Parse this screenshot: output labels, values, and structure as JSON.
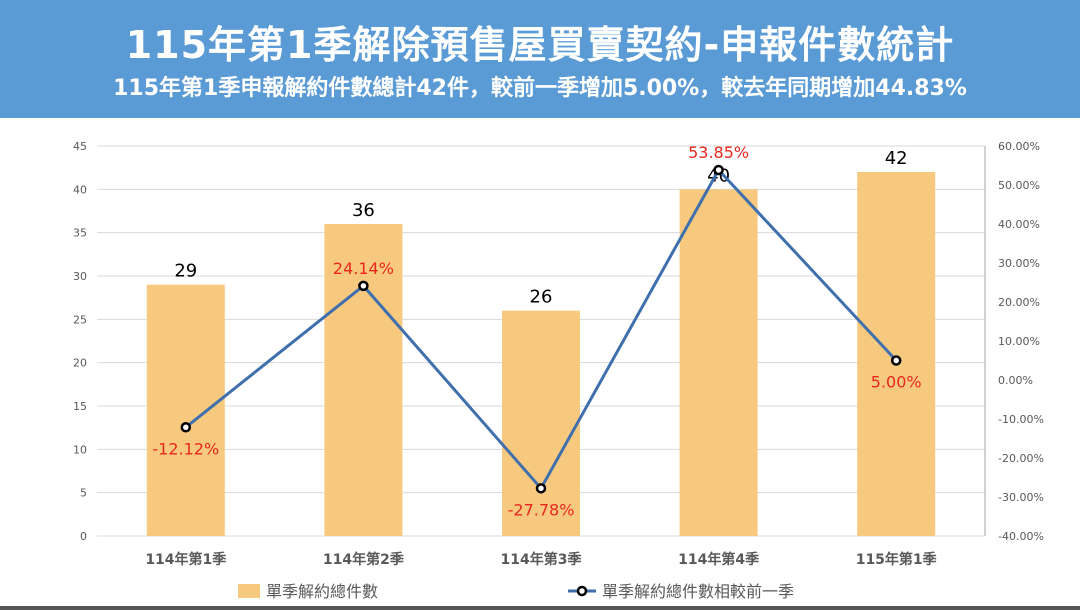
{
  "header": {
    "title": "115年第1季解除預售屋買賣契約-申報件數統計",
    "subtitle": "115年第1季申報解約件數總計42件，較前一季增加5.00%，較去年同期增加44.83%"
  },
  "chart_data": {
    "type": "bar",
    "categories": [
      "114年第1季",
      "114年第2季",
      "114年第3季",
      "114年第4季",
      "115年第1季"
    ],
    "series": [
      {
        "name": "單季解約總件數",
        "type": "bar",
        "axis": "left",
        "values": [
          29,
          36,
          26,
          40,
          42
        ],
        "labels": [
          "29",
          "36",
          "26",
          "40",
          "42"
        ],
        "color": "#f6c97f"
      },
      {
        "name": "單季解約總件數相較前一季",
        "type": "line",
        "axis": "right",
        "values": [
          -12.12,
          24.14,
          -27.78,
          53.85,
          5.0
        ],
        "labels": [
          "-12.12%",
          "24.14%",
          "-27.78%",
          "53.85%",
          "5.00%"
        ],
        "color": "#3f6fad",
        "label_color": "#e8281e"
      }
    ],
    "left_axis": {
      "ylim": [
        0,
        45
      ],
      "ticks": [
        "0",
        "5",
        "10",
        "15",
        "20",
        "25",
        "30",
        "35",
        "40",
        "45"
      ]
    },
    "right_axis": {
      "ylim": [
        -40,
        60
      ],
      "ticks": [
        "-40.00%",
        "-30.00%",
        "-20.00%",
        "-10.00%",
        "0.00%",
        "10.00%",
        "20.00%",
        "30.00%",
        "40.00%",
        "50.00%",
        "60.00%"
      ]
    },
    "grid": true,
    "legend_position": "bottom"
  }
}
